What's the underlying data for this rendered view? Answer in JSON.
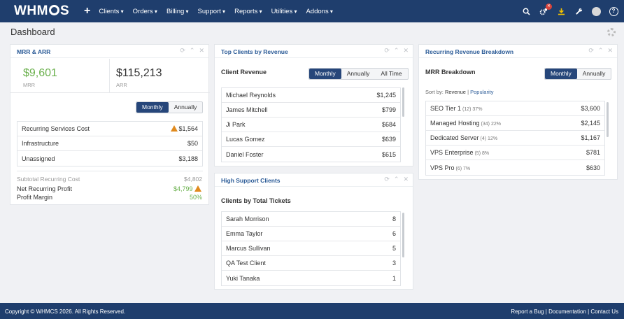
{
  "nav": {
    "logo_left": "WHM",
    "logo_right": "S",
    "plus": "+",
    "menu": [
      "Clients",
      "Orders",
      "Billing",
      "Support",
      "Reports",
      "Utilities",
      "Addons"
    ],
    "help": "?"
  },
  "page": {
    "title": "Dashboard"
  },
  "mrr_panel": {
    "title": "MRR & ARR",
    "mrr_value": "$9,601",
    "mrr_label": "MRR",
    "arr_value": "$115,213",
    "arr_label": "ARR",
    "toggle": [
      "Monthly",
      "Annually"
    ],
    "costs": [
      {
        "label": "Recurring Services Cost",
        "value": "$1,564",
        "warn": true
      },
      {
        "label": "Infrastructure",
        "value": "$50",
        "warn": false
      },
      {
        "label": "Unassigned",
        "value": "$3,188",
        "warn": false
      }
    ],
    "subtotal_label": "Subtotal Recurring Cost",
    "subtotal_value": "$4,802",
    "net_label": "Net Recurring Profit",
    "net_value": "$4,799",
    "margin_label": "Profit Margin",
    "margin_value": "50%"
  },
  "top_clients": {
    "title": "Top Clients by Revenue",
    "subtitle": "Client Revenue",
    "toggle": [
      "Monthly",
      "Annually",
      "All Time"
    ],
    "rows": [
      {
        "name": "Michael Reynolds",
        "value": "$1,245"
      },
      {
        "name": "James Mitchell",
        "value": "$799"
      },
      {
        "name": "Ji Park",
        "value": "$684"
      },
      {
        "name": "Lucas Gomez",
        "value": "$639"
      },
      {
        "name": "Daniel Foster",
        "value": "$615"
      }
    ]
  },
  "support_clients": {
    "title": "High Support Clients",
    "subtitle": "Clients by Total Tickets",
    "rows": [
      {
        "name": "Sarah Morrison",
        "value": "8"
      },
      {
        "name": "Emma Taylor",
        "value": "6"
      },
      {
        "name": "Marcus Sullivan",
        "value": "5"
      },
      {
        "name": "QA Test Client",
        "value": "3"
      },
      {
        "name": "Yuki Tanaka",
        "value": "1"
      }
    ]
  },
  "mrr_breakdown": {
    "title": "Recurring Revenue Breakdown",
    "subtitle": "MRR Breakdown",
    "toggle": [
      "Monthly",
      "Annually"
    ],
    "sort_prefix": "Sort by:",
    "sort_revenue": "Revenue",
    "sort_sep": "|",
    "sort_popularity": "Popularity",
    "rows": [
      {
        "name": "SEO Tier 1",
        "meta": "(12) 37%",
        "value": "$3,600"
      },
      {
        "name": "Managed Hosting",
        "meta": "(34) 22%",
        "value": "$2,145"
      },
      {
        "name": "Dedicated Server",
        "meta": "(4) 12%",
        "value": "$1,167"
      },
      {
        "name": "VPS Enterprise",
        "meta": "(5) 8%",
        "value": "$781"
      },
      {
        "name": "VPS Pro",
        "meta": "(6) 7%",
        "value": "$630"
      }
    ]
  },
  "footer": {
    "copyright": "Copyright © WHMCS 2026. All Rights Reserved.",
    "links": [
      "Report a Bug",
      "Documentation",
      "Contact Us"
    ],
    "sep": " | "
  }
}
